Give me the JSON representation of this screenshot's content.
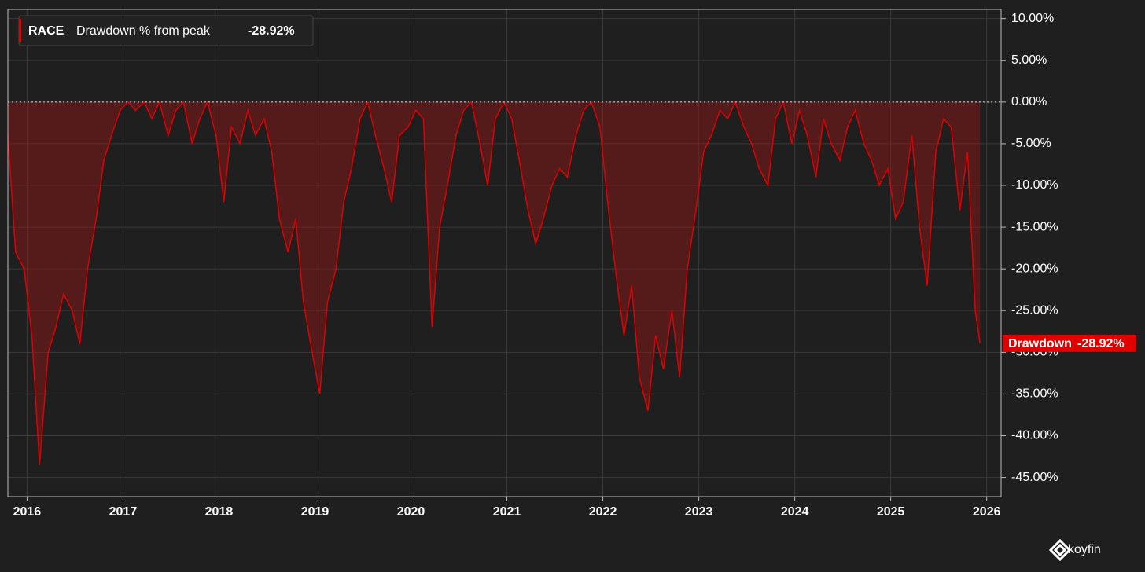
{
  "chart_data": {
    "type": "area",
    "ticker": "RACE",
    "legend_label": "Drawdown % from peak",
    "current_label": "-28.92%",
    "brand": "koyfin",
    "x": [
      2015.8,
      2015.88,
      2015.97,
      2016.05,
      2016.13,
      2016.22,
      2016.3,
      2016.38,
      2016.47,
      2016.55,
      2016.63,
      2016.72,
      2016.8,
      2016.88,
      2016.97,
      2017.05,
      2017.13,
      2017.22,
      2017.3,
      2017.38,
      2017.47,
      2017.55,
      2017.63,
      2017.72,
      2017.8,
      2017.88,
      2017.97,
      2018.05,
      2018.13,
      2018.22,
      2018.3,
      2018.38,
      2018.47,
      2018.55,
      2018.63,
      2018.72,
      2018.8,
      2018.88,
      2018.97,
      2019.05,
      2019.13,
      2019.22,
      2019.3,
      2019.38,
      2019.47,
      2019.55,
      2019.63,
      2019.72,
      2019.8,
      2019.88,
      2019.97,
      2020.05,
      2020.13,
      2020.22,
      2020.3,
      2020.38,
      2020.47,
      2020.55,
      2020.63,
      2020.72,
      2020.8,
      2020.88,
      2020.97,
      2021.05,
      2021.13,
      2021.22,
      2021.3,
      2021.38,
      2021.47,
      2021.55,
      2021.63,
      2021.72,
      2021.8,
      2021.88,
      2021.97,
      2022.05,
      2022.13,
      2022.22,
      2022.3,
      2022.38,
      2022.47,
      2022.55,
      2022.63,
      2022.72,
      2022.8,
      2022.88,
      2022.97,
      2023.05,
      2023.13,
      2023.22,
      2023.3,
      2023.38,
      2023.47,
      2023.55,
      2023.63,
      2023.72,
      2023.8,
      2023.88,
      2023.97,
      2024.05,
      2024.13,
      2024.22,
      2024.3,
      2024.38,
      2024.47,
      2024.55,
      2024.63,
      2024.72,
      2024.8,
      2024.88,
      2024.97,
      2025.05,
      2025.13,
      2025.22,
      2025.3,
      2025.38,
      2025.47,
      2025.55,
      2025.63,
      2025.72,
      2025.8,
      2025.88,
      2025.93
    ],
    "series": [
      {
        "name": "Drawdown",
        "color": "#e00000",
        "fill": "rgba(150,20,20,0.45)",
        "values": [
          -4,
          -18,
          -20,
          -28,
          -43.5,
          -30,
          -27,
          -23,
          -25,
          -29,
          -20,
          -14,
          -7,
          -4,
          -1,
          0,
          -1,
          0,
          -2,
          0,
          -4,
          -1,
          0,
          -5,
          -2,
          0,
          -4,
          -12,
          -3,
          -5,
          -1,
          -4,
          -2,
          -6,
          -14,
          -18,
          -14,
          -24,
          -30,
          -35,
          -24,
          -20,
          -12,
          -8,
          -2,
          0,
          -4,
          -8,
          -12,
          -4,
          -3,
          -1,
          -2,
          -27,
          -15,
          -10,
          -4,
          -1,
          0,
          -5,
          -10,
          -2,
          0,
          -2,
          -7,
          -13,
          -17,
          -14,
          -10,
          -8,
          -9,
          -4,
          -1,
          0,
          -3,
          -12,
          -20,
          -28,
          -22,
          -33,
          -37,
          -28,
          -32,
          -25,
          -33,
          -20,
          -13,
          -6,
          -4,
          -1,
          -2,
          0,
          -3,
          -5,
          -8,
          -10,
          -2,
          0,
          -5,
          -1,
          -4,
          -9,
          -2,
          -5,
          -7,
          -3,
          -1,
          -5,
          -7,
          -10,
          -8,
          -14,
          -12,
          -4,
          -15,
          -22,
          -6,
          -2,
          -3,
          -13,
          -6,
          -25,
          -28.92
        ]
      }
    ],
    "xlim": [
      2015.8,
      2026.15
    ],
    "xticks": [
      2016,
      2017,
      2018,
      2019,
      2020,
      2021,
      2022,
      2023,
      2024,
      2025,
      2026
    ],
    "ylim": [
      -47.3,
      11.1
    ],
    "yticks": [
      {
        "value": 10,
        "label": "10.00%"
      },
      {
        "value": 5,
        "label": "5.00%"
      },
      {
        "value": 0,
        "label": "0.00%"
      },
      {
        "value": -5,
        "label": "-5.00%"
      },
      {
        "value": -10,
        "label": "-10.00%"
      },
      {
        "value": -15,
        "label": "-15.00%"
      },
      {
        "value": -20,
        "label": "-20.00%"
      },
      {
        "value": -25,
        "label": "-25.00%"
      },
      {
        "value": -30,
        "label": "-30.00%"
      },
      {
        "value": -35,
        "label": "-35.00%"
      },
      {
        "value": -40,
        "label": "-40.00%"
      },
      {
        "value": -45,
        "label": "-45.00%"
      }
    ],
    "grid": true,
    "zero_line": true
  }
}
